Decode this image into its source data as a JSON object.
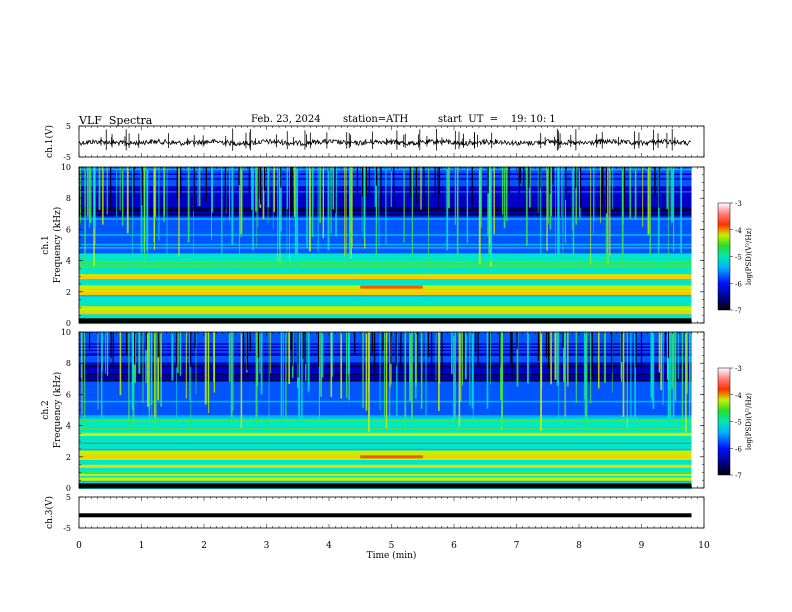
{
  "header": {
    "title": "VLF  Spectra",
    "date": "Feb. 23, 2024",
    "station": "station=ATH",
    "start_ut": "start  UT  =    19: 10: 1"
  },
  "chart_data": [
    {
      "type": "line",
      "panel": "ch1-waveform",
      "ylabel": "ch.1(V)",
      "yticks": [
        "5",
        "-5"
      ],
      "ylim": [
        -5,
        5
      ],
      "xlim": [
        0,
        10
      ],
      "trace_end_min": 9.8,
      "approx_level": -0.3,
      "color": "#000000"
    },
    {
      "type": "heatmap",
      "panel": "ch1-spectrogram",
      "ylabel": "ch.1",
      "ylabel2": "Frequency  (kHz)",
      "yticks": [
        "10",
        "8",
        "6",
        "4",
        "2",
        "0"
      ],
      "ylim": [
        0,
        10
      ],
      "xlim": [
        0,
        10
      ],
      "data_end_min": 9.8,
      "colorbar": {
        "label": "log(PSD)(V²/Hz)",
        "range": [
          -7,
          -3
        ],
        "ticks": [
          "-3",
          "-4",
          "-5",
          "-6",
          "-7"
        ]
      },
      "features": {
        "bright_lines_khz": [
          2.0,
          2.3,
          1.0,
          0.7,
          3.0
        ],
        "event_window_min": [
          4.5,
          5.5
        ],
        "event_freq_khz": 2.3
      }
    },
    {
      "type": "heatmap",
      "panel": "ch2-spectrogram",
      "ylabel": "ch.2",
      "ylabel2": "Frequency  (kHz)",
      "yticks": [
        "10",
        "8",
        "6",
        "4",
        "2",
        "0"
      ],
      "ylim": [
        0,
        10
      ],
      "xlim": [
        0,
        10
      ],
      "data_end_min": 9.8,
      "colorbar": {
        "label": "log(PSD)(V²/Hz)",
        "range": [
          -7,
          -3
        ],
        "ticks": [
          "-3",
          "-4",
          "-5",
          "-6",
          "-7"
        ]
      },
      "features": {
        "bright_lines_khz": [
          2.0,
          2.3,
          3.5,
          1.4,
          0.6
        ],
        "event_window_min": [
          4.5,
          5.5
        ],
        "event_freq_khz": 2.0
      }
    },
    {
      "type": "line",
      "panel": "ch3-waveform",
      "ylabel": "ch.3(V)",
      "yticks": [
        "5",
        "-5"
      ],
      "ylim": [
        -5,
        5
      ],
      "xlim": [
        0,
        10
      ],
      "trace_end_min": 9.8,
      "approx_level": -0.9,
      "color": "#000000"
    }
  ],
  "xaxis": {
    "label": "Time  (min)",
    "ticks": [
      "0",
      "1",
      "2",
      "3",
      "4",
      "5",
      "6",
      "7",
      "8",
      "9",
      "10"
    ]
  },
  "colormap": [
    "#00004a",
    "#0000c8",
    "#0055ff",
    "#00b4ff",
    "#00e6c8",
    "#3ce650",
    "#c8f000",
    "#ffc800",
    "#ff3200",
    "#c8001e",
    "#ffffff"
  ]
}
